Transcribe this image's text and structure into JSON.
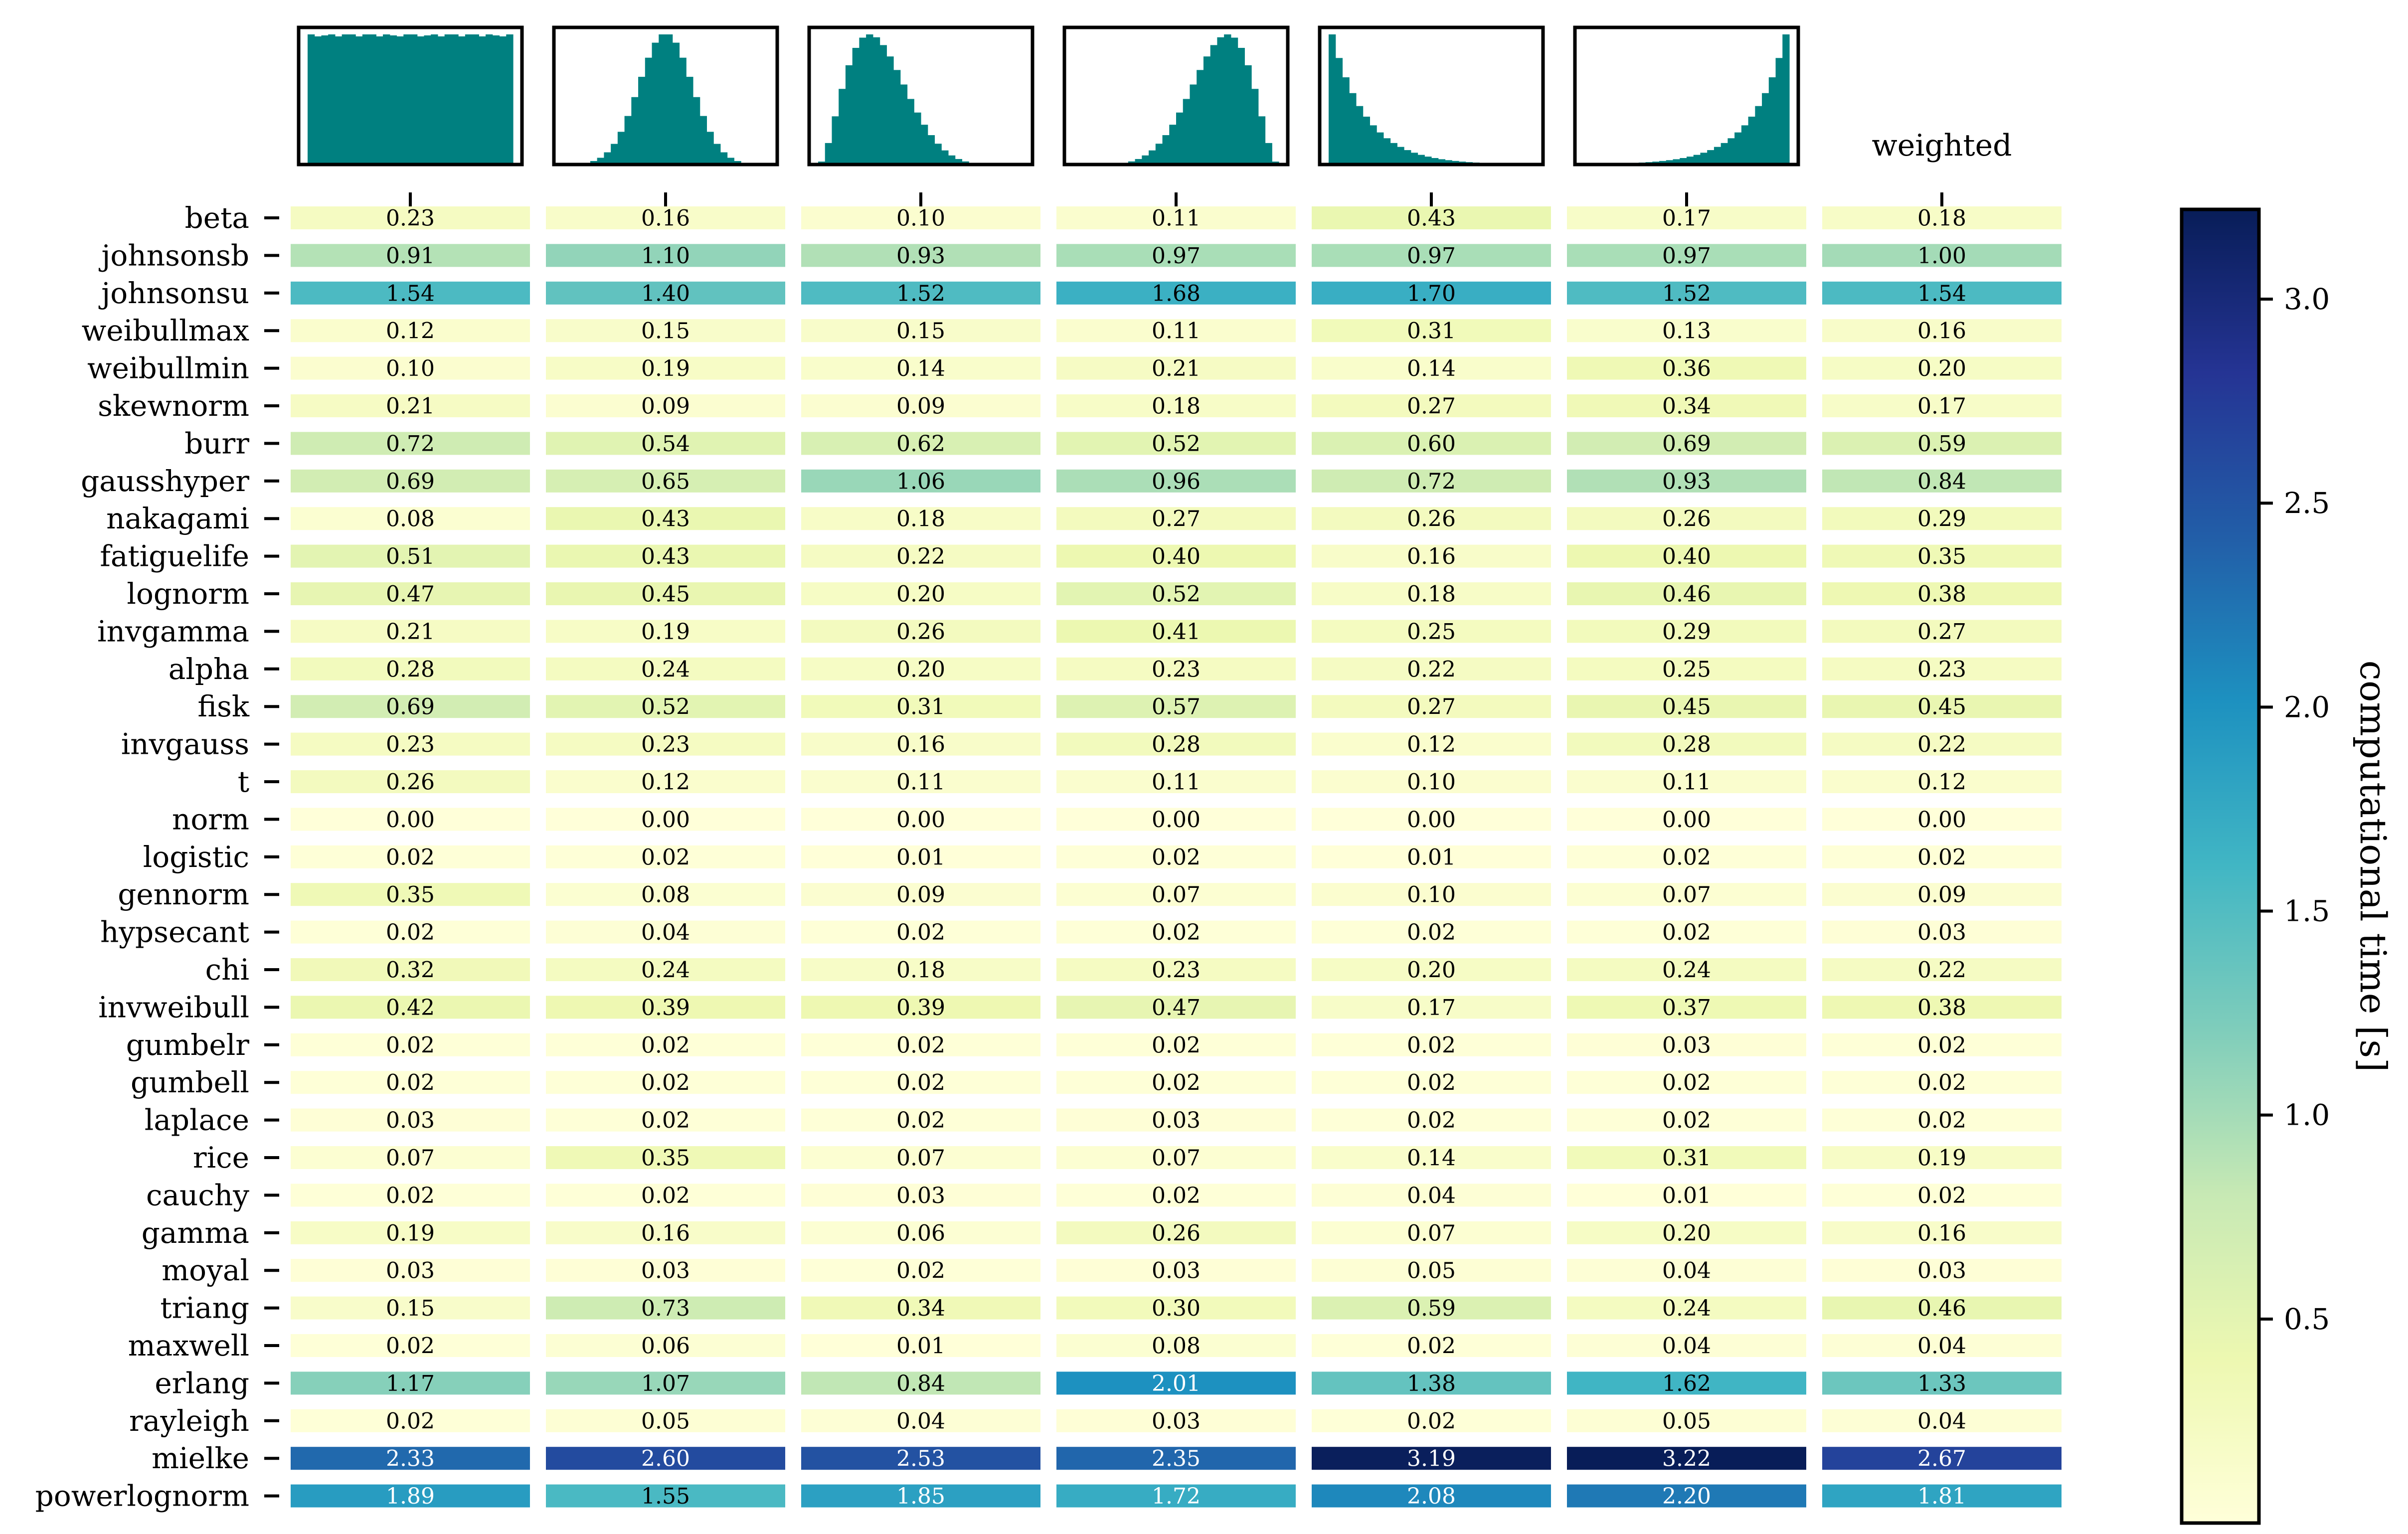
{
  "chart_data": {
    "type": "heatmap",
    "title": "",
    "columns": [
      {
        "name": "uniform",
        "header": "",
        "shape": "uniform"
      },
      {
        "name": "normal",
        "header": "",
        "shape": "normal"
      },
      {
        "name": "right-skewed",
        "header": "",
        "shape": "right-skewed"
      },
      {
        "name": "left-skewed",
        "header": "",
        "shape": "left-skewed"
      },
      {
        "name": "exponential",
        "header": "",
        "shape": "exponential"
      },
      {
        "name": "reverse-exponential",
        "header": "",
        "shape": "reverse-exponential"
      },
      {
        "name": "weighted",
        "header": "weighted",
        "shape": "none"
      }
    ],
    "rows": [
      "beta",
      "johnsonsb",
      "johnsonsu",
      "weibullmax",
      "weibullmin",
      "skewnorm",
      "burr",
      "gausshyper",
      "nakagami",
      "fatiguelife",
      "lognorm",
      "invgamma",
      "alpha",
      "fisk",
      "invgauss",
      "t",
      "norm",
      "logistic",
      "gennorm",
      "hypsecant",
      "chi",
      "invweibull",
      "gumbelr",
      "gumbell",
      "laplace",
      "rice",
      "cauchy",
      "gamma",
      "moyal",
      "triang",
      "maxwell",
      "erlang",
      "rayleigh",
      "mielke",
      "powerlognorm"
    ],
    "values": [
      [
        0.23,
        0.16,
        0.1,
        0.11,
        0.43,
        0.17,
        0.18
      ],
      [
        0.91,
        1.1,
        0.93,
        0.97,
        0.97,
        0.97,
        1.0
      ],
      [
        1.54,
        1.4,
        1.52,
        1.68,
        1.7,
        1.52,
        1.54
      ],
      [
        0.12,
        0.15,
        0.15,
        0.11,
        0.31,
        0.13,
        0.16
      ],
      [
        0.1,
        0.19,
        0.14,
        0.21,
        0.14,
        0.36,
        0.2
      ],
      [
        0.21,
        0.09,
        0.09,
        0.18,
        0.27,
        0.34,
        0.17
      ],
      [
        0.72,
        0.54,
        0.62,
        0.52,
        0.6,
        0.69,
        0.59
      ],
      [
        0.69,
        0.65,
        1.06,
        0.96,
        0.72,
        0.93,
        0.84
      ],
      [
        0.08,
        0.43,
        0.18,
        0.27,
        0.26,
        0.26,
        0.29
      ],
      [
        0.51,
        0.43,
        0.22,
        0.4,
        0.16,
        0.4,
        0.35
      ],
      [
        0.47,
        0.45,
        0.2,
        0.52,
        0.18,
        0.46,
        0.38
      ],
      [
        0.21,
        0.19,
        0.26,
        0.41,
        0.25,
        0.29,
        0.27
      ],
      [
        0.28,
        0.24,
        0.2,
        0.23,
        0.22,
        0.25,
        0.23
      ],
      [
        0.69,
        0.52,
        0.31,
        0.57,
        0.27,
        0.45,
        0.45
      ],
      [
        0.23,
        0.23,
        0.16,
        0.28,
        0.12,
        0.28,
        0.22
      ],
      [
        0.26,
        0.12,
        0.11,
        0.11,
        0.1,
        0.11,
        0.12
      ],
      [
        0.0,
        0.0,
        0.0,
        0.0,
        0.0,
        0.0,
        0.0
      ],
      [
        0.02,
        0.02,
        0.01,
        0.02,
        0.01,
        0.02,
        0.02
      ],
      [
        0.35,
        0.08,
        0.09,
        0.07,
        0.1,
        0.07,
        0.09
      ],
      [
        0.02,
        0.04,
        0.02,
        0.02,
        0.02,
        0.02,
        0.03
      ],
      [
        0.32,
        0.24,
        0.18,
        0.23,
        0.2,
        0.24,
        0.22
      ],
      [
        0.42,
        0.39,
        0.39,
        0.47,
        0.17,
        0.37,
        0.38
      ],
      [
        0.02,
        0.02,
        0.02,
        0.02,
        0.02,
        0.03,
        0.02
      ],
      [
        0.02,
        0.02,
        0.02,
        0.02,
        0.02,
        0.02,
        0.02
      ],
      [
        0.03,
        0.02,
        0.02,
        0.03,
        0.02,
        0.02,
        0.02
      ],
      [
        0.07,
        0.35,
        0.07,
        0.07,
        0.14,
        0.31,
        0.19
      ],
      [
        0.02,
        0.02,
        0.03,
        0.02,
        0.04,
        0.01,
        0.02
      ],
      [
        0.19,
        0.16,
        0.06,
        0.26,
        0.07,
        0.2,
        0.16
      ],
      [
        0.03,
        0.03,
        0.02,
        0.03,
        0.05,
        0.04,
        0.03
      ],
      [
        0.15,
        0.73,
        0.34,
        0.3,
        0.59,
        0.24,
        0.46
      ],
      [
        0.02,
        0.06,
        0.01,
        0.08,
        0.02,
        0.04,
        0.04
      ],
      [
        1.17,
        1.07,
        0.84,
        2.01,
        1.38,
        1.62,
        1.33
      ],
      [
        0.02,
        0.05,
        0.04,
        0.03,
        0.02,
        0.05,
        0.04
      ],
      [
        2.33,
        2.6,
        2.53,
        2.35,
        3.19,
        3.22,
        2.67
      ],
      [
        1.89,
        1.55,
        1.85,
        1.72,
        2.08,
        2.2,
        1.81
      ]
    ],
    "colorbar": {
      "label": "computational time [s]",
      "range": [
        0.0,
        3.22
      ],
      "ticks": [
        0.5,
        1.0,
        1.5,
        2.0,
        2.5,
        3.0
      ],
      "tick_labels": [
        "0.5",
        "1.0",
        "1.5",
        "2.0",
        "2.5",
        "3.0"
      ],
      "colormap": "YlGnBu"
    },
    "histogram_color": "#008080",
    "value_format": "2 decimals"
  }
}
